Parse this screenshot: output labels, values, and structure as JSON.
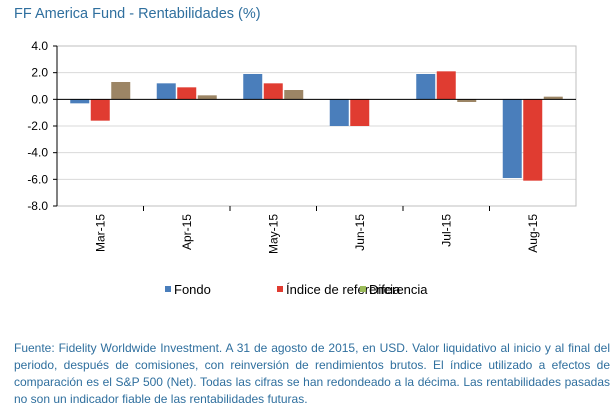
{
  "chart_data": {
    "type": "bar",
    "title": "FF America Fund - Rentabilidades (%)",
    "categories": [
      "Mar-15",
      "Apr-15",
      "May-15",
      "Jun-15",
      "Jul-15",
      "Aug-15"
    ],
    "series": [
      {
        "name": "Fondo",
        "color": "#4a7ebb",
        "values": [
          -0.3,
          1.2,
          1.9,
          -2.0,
          1.9,
          -5.9
        ]
      },
      {
        "name": "Índice de referencia",
        "color": "#e03c31",
        "values": [
          -1.6,
          0.9,
          1.2,
          -2.0,
          2.1,
          -6.1
        ]
      },
      {
        "name": "Diferencia",
        "color": "#9c8565",
        "legend_color": "#9bbb59",
        "values": [
          1.3,
          0.3,
          0.7,
          0.0,
          -0.2,
          0.2
        ]
      }
    ],
    "y_ticks": [
      "4.0",
      "2.0",
      "0.0",
      "-2.0",
      "-4.0",
      "-6.0",
      "-8.0"
    ],
    "ylim": [
      -8,
      4
    ],
    "grid": true,
    "legend_position": "bottom"
  },
  "footnote": "Fuente: Fidelity Worldwide Investment. A 31 de agosto de 2015, en USD. Valor liquidativo al inicio y al final del periodo, después de comisiones, con reinversión de rendimientos brutos. El índice utilizado a efectos de comparación es el S&P 500 (Net). Todas las cifras se han redondeado a la décima. Las rentabilidades pasadas no son un indicador fiable de las rentabilidades futuras."
}
